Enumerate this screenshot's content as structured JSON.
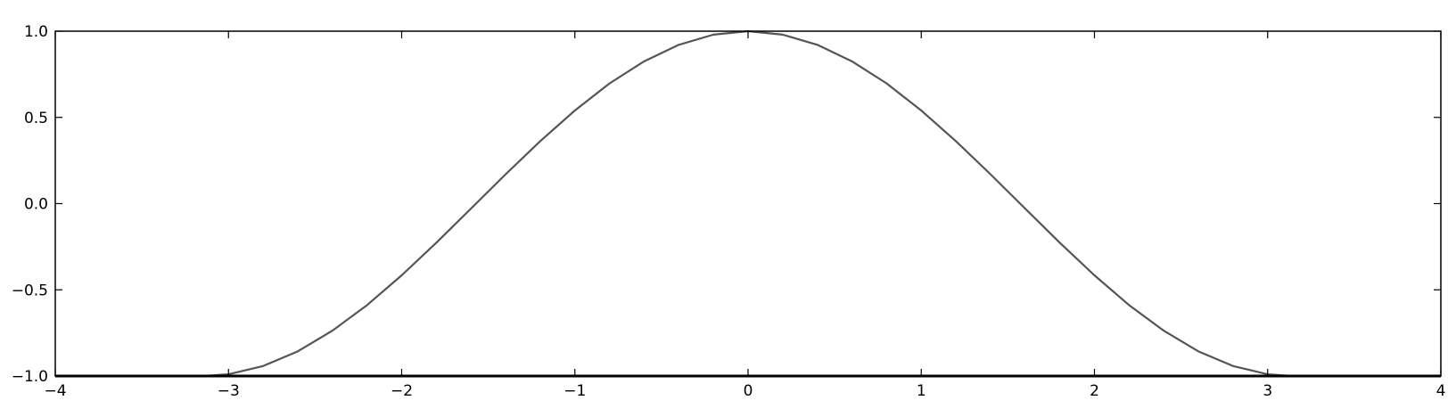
{
  "chart_data": {
    "type": "line",
    "title": "",
    "xlabel": "",
    "ylabel": "",
    "xlim": [
      -4,
      4
    ],
    "ylim": [
      -1.0,
      1.0
    ],
    "grid": false,
    "legend": "none",
    "x_ticks": [
      -4,
      -3,
      -2,
      -1,
      0,
      1,
      2,
      3,
      4
    ],
    "y_ticks": [
      -1.0,
      -0.5,
      0.0,
      0.5,
      1.0
    ],
    "x_tick_labels": [
      "−4",
      "−3",
      "−2",
      "−1",
      "0",
      "1",
      "2",
      "3",
      "4"
    ],
    "y_tick_labels": [
      "−1.0",
      "−0.5",
      "0.0",
      "0.5",
      "1.0"
    ],
    "series": [
      {
        "color": "#555555",
        "x": [
          -3.1416,
          -3.0,
          -2.8,
          -2.6,
          -2.4,
          -2.2,
          -2.0,
          -1.8,
          -1.6,
          -1.4,
          -1.2,
          -1.0,
          -0.8,
          -0.6,
          -0.4,
          -0.2,
          0.0,
          0.2,
          0.4,
          0.6,
          0.8,
          1.0,
          1.2,
          1.4,
          1.6,
          1.8,
          2.0,
          2.2,
          2.4,
          2.6,
          2.8,
          3.0,
          3.1416
        ],
        "y": [
          -1.0,
          -0.99,
          -0.942,
          -0.857,
          -0.737,
          -0.589,
          -0.416,
          -0.227,
          -0.029,
          0.17,
          0.362,
          0.54,
          0.697,
          0.825,
          0.921,
          0.98,
          1.0,
          0.98,
          0.921,
          0.825,
          0.697,
          0.54,
          0.362,
          0.17,
          -0.029,
          -0.227,
          -0.416,
          -0.589,
          -0.737,
          -0.857,
          -0.942,
          -0.99,
          -1.0
        ]
      }
    ]
  }
}
